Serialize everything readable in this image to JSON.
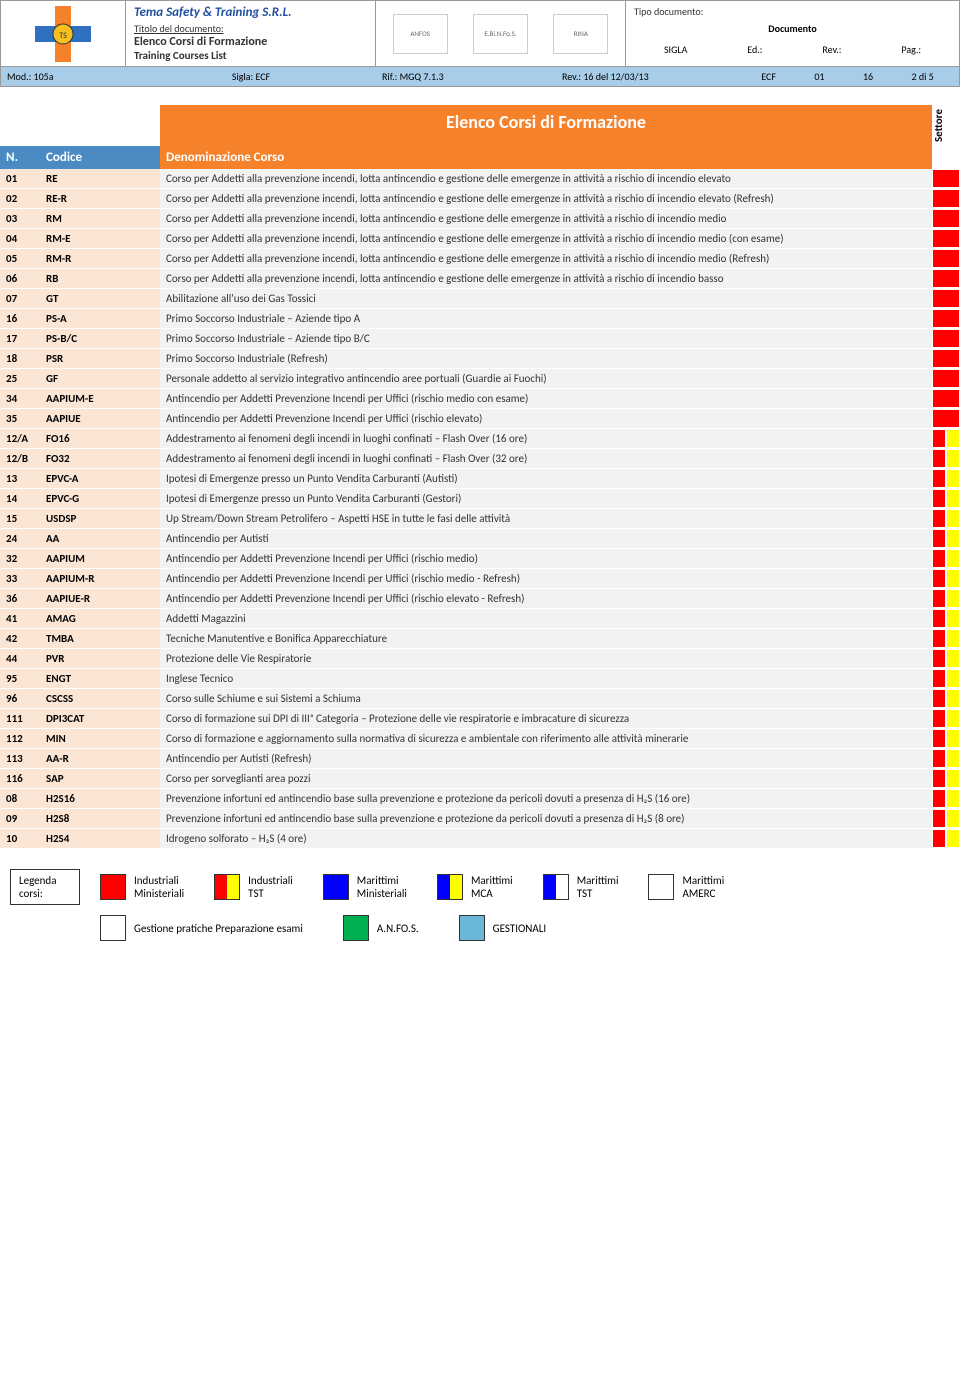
{
  "header": {
    "company": "Tema Safety & Training S.R.L.",
    "title_label": "Titolo  del  documento:",
    "doc_title_it": "Elenco Corsi di Formazione",
    "doc_title_en": "Training Courses List",
    "tipo_doc_label": "Tipo documento:",
    "tipo_doc_value": "Documento",
    "col_sigla": "SIGLA",
    "col_ed": "Ed.:",
    "col_rev": "Rev.:",
    "col_pag": "Pag.:",
    "certs": [
      "ANFOS",
      "E.Bi.N.Fo.S.",
      "RINA"
    ]
  },
  "infobar": {
    "mod": "Mod.: 105a",
    "sigla": "Sigla: ECF",
    "rif": "Rif.: MGQ 7.1.3",
    "rev": "Rev.: 16 del 12/03/13",
    "ecf": "ECF",
    "ed": "01",
    "revn": "16",
    "pag": "2 di 5"
  },
  "title_band": "Elenco Corsi di Formazione",
  "settore_label": "Settore",
  "thdr": {
    "n": "N.",
    "cod": "Codice",
    "den": "Denominazione Corso"
  },
  "rows": [
    {
      "n": "01",
      "cod": "RE",
      "den": "Corso per Addetti alla prevenzione incendi, lotta antincendio e gestione delle emergenze in attività a rischio di incendio elevato",
      "set": [
        "red"
      ]
    },
    {
      "n": "02",
      "cod": "RE-R",
      "den": "Corso per Addetti alla prevenzione incendi, lotta antincendio e gestione delle emergenze in attività a rischio di incendio elevato (Refresh)",
      "set": [
        "red"
      ]
    },
    {
      "n": "03",
      "cod": "RM",
      "den": "Corso per Addetti alla prevenzione incendi, lotta antincendio e gestione delle emergenze in attività a rischio di incendio medio",
      "set": [
        "red"
      ]
    },
    {
      "n": "04",
      "cod": "RM-E",
      "den": "Corso per Addetti alla prevenzione incendi, lotta antincendio e gestione delle emergenze in attività a rischio di incendio medio (con esame)",
      "set": [
        "red"
      ]
    },
    {
      "n": "05",
      "cod": "RM-R",
      "den": "Corso per Addetti alla prevenzione incendi, lotta antincendio e gestione delle emergenze in attività a rischio di incendio medio (Refresh)",
      "set": [
        "red"
      ]
    },
    {
      "n": "06",
      "cod": "RB",
      "den": "Corso per Addetti alla prevenzione incendi, lotta antincendio e gestione delle emergenze in attività a rischio di incendio basso",
      "set": [
        "red"
      ]
    },
    {
      "n": "07",
      "cod": "GT",
      "den": "Abilitazione all'uso dei Gas Tossici",
      "set": [
        "red"
      ]
    },
    {
      "n": "16",
      "cod": "PS-A",
      "den": "Primo Soccorso Industriale – Aziende tipo A",
      "set": [
        "red"
      ]
    },
    {
      "n": "17",
      "cod": "PS-B/C",
      "den": "Primo Soccorso Industriale – Aziende tipo B/C",
      "set": [
        "red"
      ]
    },
    {
      "n": "18",
      "cod": "PSR",
      "den": "Primo Soccorso Industriale (Refresh)",
      "set": [
        "red"
      ]
    },
    {
      "n": "25",
      "cod": "GF",
      "den": "Personale addetto al servizio integrativo antincendio aree portuali (Guardie ai Fuochi)",
      "set": [
        "red"
      ]
    },
    {
      "n": "34",
      "cod": "AAPIUM-E",
      "den": "Antincendio per Addetti Prevenzione Incendi per Uffici (rischio medio con esame)",
      "set": [
        "red"
      ]
    },
    {
      "n": "35",
      "cod": "AAPIUE",
      "den": "Antincendio per Addetti Prevenzione Incendi per Uffici (rischio elevato)",
      "set": [
        "red"
      ]
    },
    {
      "n": "12/A",
      "cod": "FO16",
      "den": "Addestramento ai fenomeni degli incendi in luoghi confinati – Flash Over (16 ore)",
      "set": [
        "red",
        "yel"
      ]
    },
    {
      "n": "12/B",
      "cod": "FO32",
      "den": "Addestramento ai fenomeni degli incendi in luoghi confinati – Flash Over (32 ore)",
      "set": [
        "red",
        "yel"
      ]
    },
    {
      "n": "13",
      "cod": "EPVC-A",
      "den": "Ipotesi di Emergenze presso un Punto Vendita Carburanti (Autisti)",
      "set": [
        "red",
        "yel"
      ]
    },
    {
      "n": "14",
      "cod": "EPVC-G",
      "den": "Ipotesi di Emergenze presso un Punto Vendita Carburanti (Gestori)",
      "set": [
        "red",
        "yel"
      ]
    },
    {
      "n": "15",
      "cod": "USDSP",
      "den": "Up Stream/Down Stream Petrolifero – Aspetti HSE in tutte le fasi delle attività",
      "set": [
        "red",
        "yel"
      ]
    },
    {
      "n": "24",
      "cod": "AA",
      "den": "Antincendio per Autisti",
      "set": [
        "red",
        "yel"
      ]
    },
    {
      "n": "32",
      "cod": "AAPIUM",
      "den": "Antincendio per Addetti Prevenzione Incendi per Uffici (rischio medio)",
      "set": [
        "red",
        "yel"
      ]
    },
    {
      "n": "33",
      "cod": "AAPIUM-R",
      "den": "Antincendio per Addetti Prevenzione Incendi per Uffici (rischio medio - Refresh)",
      "set": [
        "red",
        "yel"
      ]
    },
    {
      "n": "36",
      "cod": "AAPIUE-R",
      "den": "Antincendio per Addetti Prevenzione Incendi per Uffici (rischio elevato - Refresh)",
      "set": [
        "red",
        "yel"
      ]
    },
    {
      "n": "41",
      "cod": "AMAG",
      "den": "Addetti Magazzini",
      "set": [
        "red",
        "yel"
      ]
    },
    {
      "n": "42",
      "cod": "TMBA",
      "den": "Tecniche Manutentive e Bonifica Apparecchiature",
      "set": [
        "red",
        "yel"
      ]
    },
    {
      "n": "44",
      "cod": "PVR",
      "den": "Protezione delle Vie Respiratorie",
      "set": [
        "red",
        "yel"
      ]
    },
    {
      "n": "95",
      "cod": "ENGT",
      "den": "Inglese Tecnico",
      "set": [
        "red",
        "yel"
      ]
    },
    {
      "n": "96",
      "cod": "CSCSS",
      "den": "Corso sulle Schiume e sui Sistemi a Schiuma",
      "set": [
        "red",
        "yel"
      ]
    },
    {
      "n": "111",
      "cod": "DPI3CAT",
      "den": "Corso di formazione sui DPI di IIIᵃ Categoria – Protezione delle vie respiratorie e imbracature di sicurezza",
      "set": [
        "red",
        "yel"
      ]
    },
    {
      "n": "112",
      "cod": "MIN",
      "den": "Corso di formazione e aggiornamento sulla normativa di sicurezza e ambientale con riferimento alle attività minerarie",
      "set": [
        "red",
        "yel"
      ]
    },
    {
      "n": "113",
      "cod": "AA-R",
      "den": "Antincendio per Autisti (Refresh)",
      "set": [
        "red",
        "yel"
      ]
    },
    {
      "n": "116",
      "cod": "SAP",
      "den": "Corso per sorveglianti area pozzi",
      "set": [
        "red",
        "yel"
      ]
    },
    {
      "n": "08",
      "cod": "H2S16",
      "den": "Prevenzione infortuni ed antincendio base sulla prevenzione e protezione da pericoli dovuti a presenza di H₂S (16 ore)",
      "set": [
        "red",
        "yel"
      ]
    },
    {
      "n": "09",
      "cod": "H2S8",
      "den": "Prevenzione infortuni ed antincendio base sulla prevenzione e protezione da pericoli dovuti a presenza di H₂S (8 ore)",
      "set": [
        "red",
        "yel"
      ]
    },
    {
      "n": "10",
      "cod": "H2S4",
      "den": "Idrogeno solforato – H₂S (4 ore)",
      "set": [
        "red",
        "yel"
      ]
    }
  ],
  "legend": {
    "label": "Legenda corsi:",
    "row1": [
      {
        "colors": [
          "red",
          "red"
        ],
        "text": "Industriali Ministeriali"
      },
      {
        "colors": [
          "red",
          "yel"
        ],
        "text": "Industriali TST"
      },
      {
        "colors": [
          "blue",
          "blue"
        ],
        "text": "Marittimi Ministeriali"
      },
      {
        "colors": [
          "blue",
          "yel"
        ],
        "text": "Marittimi MCA"
      },
      {
        "colors": [
          "blue",
          "white"
        ],
        "text": "Marittimi TST"
      },
      {
        "colors": [
          "white",
          "white"
        ],
        "text": "Marittimi AMERC"
      }
    ],
    "row2": [
      {
        "colors": [
          "white",
          "white"
        ],
        "text": "Gestione pratiche Preparazione esami"
      },
      {
        "colors": [
          "green",
          "green"
        ],
        "text": "A.N.FO.S."
      },
      {
        "colors": [
          "cyan",
          "cyan"
        ],
        "text": "GESTIONALI"
      }
    ]
  },
  "colors": {
    "orange": "#f5822a",
    "blue_hdr": "#4a8bc4",
    "light_blue": "#a8cde8",
    "peach": "#fbe6d5",
    "grey_bg": "#f2f2f2"
  }
}
